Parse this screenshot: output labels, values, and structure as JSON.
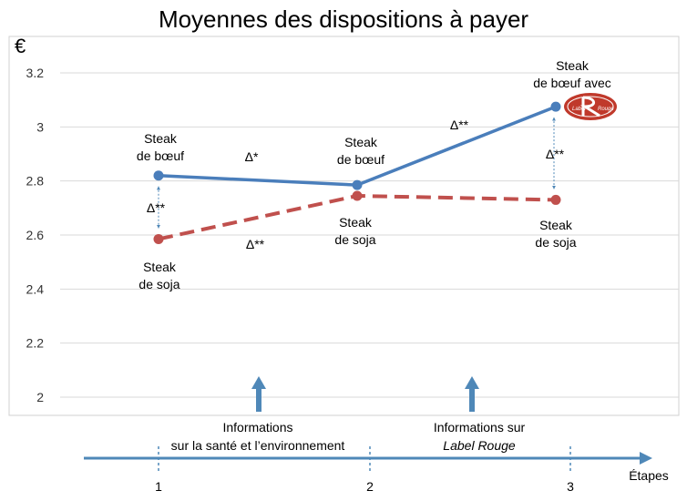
{
  "chart_data": {
    "type": "line",
    "title": "Moyennes des dispositions à payer",
    "ylabel": "€",
    "xlabel": "Étapes",
    "ylim": [
      2,
      3.2
    ],
    "yticks": [
      "2",
      "2.2",
      "2.4",
      "2.6",
      "2.8",
      "3",
      "3.2"
    ],
    "xticks": [
      "1",
      "2",
      "3"
    ],
    "x": [
      1,
      2,
      3
    ],
    "grid": true,
    "legend": "none",
    "colors": {
      "beef": "#4a7ebb",
      "soy": "#c0504d",
      "axis": "#4f88b8",
      "arrow": "#4f88b8"
    },
    "series": [
      {
        "key": "beef",
        "values": [
          2.82,
          2.785,
          3.075
        ],
        "style": "solid"
      },
      {
        "key": "soy",
        "values": [
          2.585,
          2.745,
          2.73
        ],
        "style": "dashed"
      }
    ],
    "point_labels": {
      "beef": [
        "Steak\nde bœuf",
        "Steak\nde bœuf",
        "Steak\nde bœuf avec"
      ],
      "soy": [
        "Steak\nde soja",
        "Steak\nde soja",
        "Steak\nde soja"
      ]
    },
    "annotations": {
      "beef_1_2": "Δ*",
      "beef_2_3": "Δ**",
      "soy_1_2": "Δ**",
      "gap_1": "Δ**",
      "gap_3": "Δ**"
    },
    "logo_text": "Label Rouge",
    "info": [
      {
        "line1": "Informations",
        "line2": "sur la santé et l’environnement"
      },
      {
        "line1": "Informations sur",
        "line2": "Label Rouge"
      }
    ]
  }
}
